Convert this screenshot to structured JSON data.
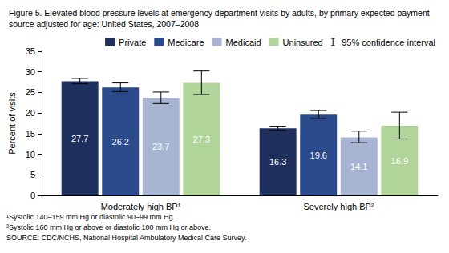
{
  "chart_data": {
    "type": "bar",
    "title": "Figure 5. Elevated blood pressure levels at emergency department visits by adults, by primary expected payment source adjusted for age: United States, 2007–2008",
    "categories": [
      "Moderately high BP¹",
      "Severely high BP²"
    ],
    "series": [
      {
        "name": "Private",
        "color": "#1f2f5e",
        "values": [
          27.7,
          16.3
        ],
        "ci_low": [
          27.1,
          15.8
        ],
        "ci_high": [
          28.4,
          16.8
        ]
      },
      {
        "name": "Medicare",
        "color": "#2b4a8c",
        "values": [
          26.2,
          19.6
        ],
        "ci_low": [
          25.2,
          18.7
        ],
        "ci_high": [
          27.3,
          20.6
        ]
      },
      {
        "name": "Medicaid",
        "color": "#a7b5d3",
        "values": [
          23.7,
          14.1
        ],
        "ci_low": [
          22.3,
          12.8
        ],
        "ci_high": [
          25.1,
          15.6
        ]
      },
      {
        "name": "Uninsured",
        "color": "#b1d49a",
        "values": [
          27.3,
          16.9
        ],
        "ci_low": [
          24.5,
          13.7
        ],
        "ci_high": [
          30.2,
          20.2
        ]
      }
    ],
    "ci_label": "95% confidence interval",
    "ylabel": "Percent of visits",
    "ylim": [
      0,
      35
    ],
    "yticks": [
      0,
      5,
      10,
      15,
      20,
      25,
      30,
      35
    ],
    "grid": false,
    "data_labels": true,
    "legend": "top",
    "footnotes": [
      "¹Systolic 140–159 mm Hg or diastolic 90–99 mm Hg.",
      "²Systolic 160 mm Hg or above or diastolic 100 mm Hg or above.",
      "SOURCE: CDC/NCHS, National Hospital Ambulatory Medical Care Survey."
    ]
  }
}
